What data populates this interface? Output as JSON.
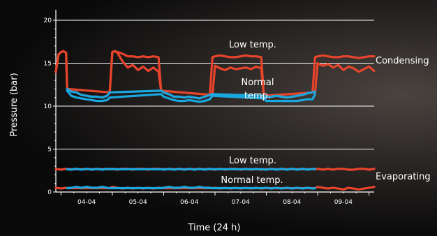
{
  "chart_data": {
    "type": "line",
    "title": "",
    "xlabel": "Time (24 h)",
    "ylabel": "Pressure (bar)",
    "ylim": [
      0,
      20
    ],
    "yticks": [
      "0",
      "5",
      "10",
      "15",
      "20"
    ],
    "xticks": [
      "04-04",
      "05-04",
      "06-04",
      "07-04",
      "08-04",
      "09-04"
    ],
    "xlim": [
      3.4,
      9.6
    ],
    "grid": "horizontal at 5 bar steps",
    "annotations": {
      "condensing": "Condensing",
      "evaporating": "Evaporating",
      "low_temp_cond": "Low temp.",
      "normal_temp_cond_1": "Normal",
      "normal_temp_cond_2": "temp.",
      "low_temp_evap": "Low temp.",
      "normal_temp_evap": "Normal temp."
    },
    "colors": {
      "red": "#e8442c",
      "blue": "#1aa8e0",
      "text": "#ffffff",
      "grid": "#ffffff"
    },
    "series": [
      {
        "key": "cond-low",
        "color": "red",
        "x": [
          3.4,
          3.45,
          3.5,
          3.55,
          3.6,
          3.62,
          3.7,
          3.8,
          3.9,
          4.0,
          4.1,
          4.2,
          4.3,
          4.4,
          4.45,
          4.5,
          4.55,
          4.6,
          4.7,
          4.8,
          4.9,
          5.0,
          5.1,
          5.2,
          5.3,
          5.4,
          5.45,
          5.5,
          5.6,
          5.7,
          5.8,
          5.9,
          6.0,
          6.1,
          6.2,
          6.3,
          6.4,
          6.45,
          6.5,
          6.6,
          6.7,
          6.8,
          6.9,
          7.0,
          7.1,
          7.2,
          7.3,
          7.4,
          7.45,
          7.5,
          7.6,
          7.7,
          7.8,
          7.9,
          8.0,
          8.1,
          8.2,
          8.3,
          8.4,
          8.45,
          8.5,
          8.6,
          8.7,
          8.8,
          8.9,
          9.0,
          9.1,
          9.2,
          9.3,
          9.4,
          9.5,
          9.6
        ],
        "y": [
          14.0,
          16.0,
          16.3,
          16.4,
          16.2,
          12.0,
          11.7,
          11.6,
          11.3,
          11.2,
          11.1,
          11.1,
          11.0,
          11.2,
          11.6,
          16.3,
          16.4,
          16.3,
          16.1,
          15.8,
          15.8,
          15.7,
          15.8,
          15.7,
          15.8,
          15.7,
          11.8,
          11.6,
          11.4,
          11.1,
          11.1,
          11.0,
          11.1,
          11.0,
          10.9,
          11.1,
          11.3,
          15.7,
          15.8,
          15.9,
          15.8,
          15.7,
          15.7,
          15.8,
          15.9,
          15.8,
          15.8,
          15.7,
          11.2,
          11.1,
          11.1,
          11.2,
          11.1,
          11.0,
          11.1,
          11.2,
          11.3,
          11.5,
          11.6,
          15.7,
          15.8,
          15.9,
          15.8,
          15.7,
          15.7,
          15.8,
          15.8,
          15.7,
          15.6,
          15.7,
          15.8,
          15.8
        ]
      },
      {
        "key": "cond-normal",
        "color": "red",
        "x": [
          3.4,
          3.45,
          3.5,
          3.55,
          3.6,
          3.62,
          4.45,
          4.5,
          4.55,
          4.6,
          4.7,
          4.8,
          4.9,
          5.0,
          5.1,
          5.2,
          5.3,
          5.4,
          5.45,
          6.45,
          6.5,
          6.6,
          6.7,
          6.8,
          6.9,
          7.0,
          7.1,
          7.2,
          7.3,
          7.4,
          7.45,
          8.45,
          8.5,
          8.6,
          8.7,
          8.8,
          8.9,
          9.0,
          9.1,
          9.2,
          9.3,
          9.4,
          9.5,
          9.6
        ],
        "y": [
          14.0,
          16.0,
          16.3,
          16.4,
          16.2,
          12.0,
          11.6,
          16.3,
          16.4,
          16.2,
          15.2,
          14.5,
          14.8,
          14.2,
          14.6,
          14.1,
          14.5,
          14.0,
          11.8,
          11.3,
          14.7,
          14.4,
          14.2,
          14.5,
          14.3,
          14.4,
          14.5,
          14.3,
          14.6,
          14.4,
          11.2,
          11.6,
          15.0,
          14.7,
          14.9,
          14.5,
          14.8,
          14.2,
          14.6,
          14.4,
          14.0,
          14.3,
          14.6,
          14.1
        ]
      },
      {
        "key": "cond-normal-blue",
        "color": "blue",
        "x": [
          3.62,
          3.7,
          3.8,
          3.9,
          4.0,
          4.1,
          4.2,
          4.3,
          4.4,
          4.45,
          5.45,
          5.5,
          5.6,
          5.7,
          5.8,
          5.9,
          6.0,
          6.1,
          6.2,
          6.3,
          6.4,
          6.45,
          7.45,
          7.5,
          7.6,
          7.7,
          7.8,
          7.9,
          8.0,
          8.1,
          8.2,
          8.3,
          8.4,
          8.45
        ],
        "y": [
          11.8,
          11.2,
          11.0,
          10.9,
          10.8,
          10.7,
          10.6,
          10.6,
          10.7,
          11.0,
          11.4,
          11.1,
          10.9,
          10.7,
          10.6,
          10.6,
          10.7,
          10.6,
          10.5,
          10.6,
          10.8,
          11.2,
          10.9,
          10.6,
          10.6,
          10.6,
          10.6,
          10.6,
          10.6,
          10.6,
          10.7,
          10.8,
          10.8,
          11.4
        ]
      },
      {
        "key": "cond-low-blue",
        "color": "blue",
        "x": [
          3.62,
          3.7,
          3.8,
          3.9,
          4.0,
          4.1,
          4.2,
          4.3,
          4.4,
          4.45,
          5.45,
          5.5,
          5.6,
          5.7,
          5.8,
          5.9,
          6.0,
          6.1,
          6.2,
          6.3,
          6.4,
          6.45,
          7.45,
          7.5,
          7.6,
          7.7,
          7.8,
          7.9,
          8.0,
          8.1,
          8.2,
          8.3,
          8.4,
          8.45
        ],
        "y": [
          12.0,
          11.7,
          11.6,
          11.3,
          11.2,
          11.1,
          11.1,
          11.0,
          11.2,
          11.6,
          11.8,
          11.6,
          11.4,
          11.1,
          11.1,
          11.0,
          11.1,
          11.0,
          10.9,
          11.1,
          11.3,
          11.4,
          11.2,
          11.1,
          11.1,
          11.2,
          11.1,
          11.0,
          11.1,
          11.2,
          11.3,
          11.5,
          11.6,
          11.7
        ]
      },
      {
        "key": "evap-low-red",
        "color": "red",
        "x": [
          3.4,
          3.5,
          3.6,
          3.62,
          4.45,
          4.5,
          4.6,
          4.7,
          4.8,
          4.9,
          5.0,
          5.1,
          5.2,
          5.3,
          5.4,
          5.45,
          6.45,
          6.5,
          6.6,
          6.7,
          6.8,
          6.9,
          7.0,
          7.1,
          7.2,
          7.3,
          7.4,
          7.45,
          8.45,
          8.5,
          8.6,
          8.7,
          8.8,
          8.9,
          9.0,
          9.1,
          9.2,
          9.3,
          9.4,
          9.5,
          9.6
        ],
        "y": [
          2.7,
          2.6,
          2.7,
          2.65,
          2.65,
          2.7,
          2.6,
          2.7,
          2.7,
          2.6,
          2.7,
          2.7,
          2.6,
          2.7,
          2.7,
          2.65,
          2.65,
          2.6,
          2.7,
          2.6,
          2.7,
          2.7,
          2.6,
          2.7,
          2.6,
          2.7,
          2.6,
          2.65,
          2.65,
          2.7,
          2.6,
          2.7,
          2.6,
          2.7,
          2.7,
          2.6,
          2.6,
          2.7,
          2.7,
          2.6,
          2.7
        ]
      },
      {
        "key": "evap-low-blue",
        "color": "blue",
        "x": [
          3.62,
          3.7,
          3.8,
          3.9,
          4.0,
          4.1,
          4.2,
          4.3,
          4.4,
          4.45,
          5.45,
          5.5,
          5.6,
          5.7,
          5.8,
          5.9,
          6.0,
          6.1,
          6.2,
          6.3,
          6.4,
          6.45,
          7.45,
          7.5,
          7.6,
          7.7,
          7.8,
          7.9,
          8.0,
          8.1,
          8.2,
          8.3,
          8.4,
          8.45
        ],
        "y": [
          2.65,
          2.6,
          2.7,
          2.6,
          2.7,
          2.6,
          2.7,
          2.6,
          2.7,
          2.65,
          2.65,
          2.6,
          2.7,
          2.6,
          2.7,
          2.6,
          2.7,
          2.6,
          2.7,
          2.6,
          2.7,
          2.65,
          2.65,
          2.6,
          2.7,
          2.6,
          2.7,
          2.6,
          2.7,
          2.6,
          2.7,
          2.6,
          2.7,
          2.65
        ]
      },
      {
        "key": "evap-normal-red",
        "color": "red",
        "x": [
          3.4,
          3.5,
          3.6,
          3.62,
          4.45,
          4.5,
          4.6,
          4.7,
          4.8,
          4.9,
          5.0,
          5.1,
          5.2,
          5.3,
          5.4,
          5.45,
          6.45,
          6.5,
          6.6,
          6.7,
          6.8,
          6.9,
          7.0,
          7.1,
          7.2,
          7.3,
          7.4,
          7.45,
          8.45,
          8.5,
          8.6,
          8.7,
          8.8,
          8.9,
          9.0,
          9.1,
          9.2,
          9.3,
          9.4,
          9.5,
          9.6
        ],
        "y": [
          0.5,
          0.4,
          0.5,
          0.45,
          0.45,
          0.6,
          0.5,
          0.4,
          0.5,
          0.4,
          0.5,
          0.4,
          0.5,
          0.4,
          0.5,
          0.45,
          0.45,
          0.5,
          0.4,
          0.5,
          0.4,
          0.5,
          0.4,
          0.5,
          0.4,
          0.5,
          0.4,
          0.45,
          0.45,
          0.6,
          0.5,
          0.4,
          0.5,
          0.4,
          0.3,
          0.5,
          0.4,
          0.3,
          0.4,
          0.5,
          0.6
        ]
      },
      {
        "key": "evap-normal-blue",
        "color": "blue",
        "x": [
          3.62,
          3.7,
          3.8,
          3.9,
          4.0,
          4.1,
          4.2,
          4.3,
          4.4,
          4.45,
          5.45,
          5.5,
          5.6,
          5.7,
          5.8,
          5.9,
          6.0,
          6.1,
          6.2,
          6.3,
          6.4,
          6.45,
          7.45,
          7.5,
          7.6,
          7.7,
          7.8,
          7.9,
          8.0,
          8.1,
          8.2,
          8.3,
          8.4,
          8.45
        ],
        "y": [
          0.45,
          0.5,
          0.6,
          0.5,
          0.6,
          0.5,
          0.5,
          0.6,
          0.5,
          0.45,
          0.45,
          0.5,
          0.6,
          0.5,
          0.5,
          0.6,
          0.5,
          0.5,
          0.6,
          0.5,
          0.5,
          0.45,
          0.45,
          0.5,
          0.4,
          0.5,
          0.4,
          0.5,
          0.4,
          0.5,
          0.4,
          0.5,
          0.4,
          0.45
        ]
      }
    ]
  }
}
